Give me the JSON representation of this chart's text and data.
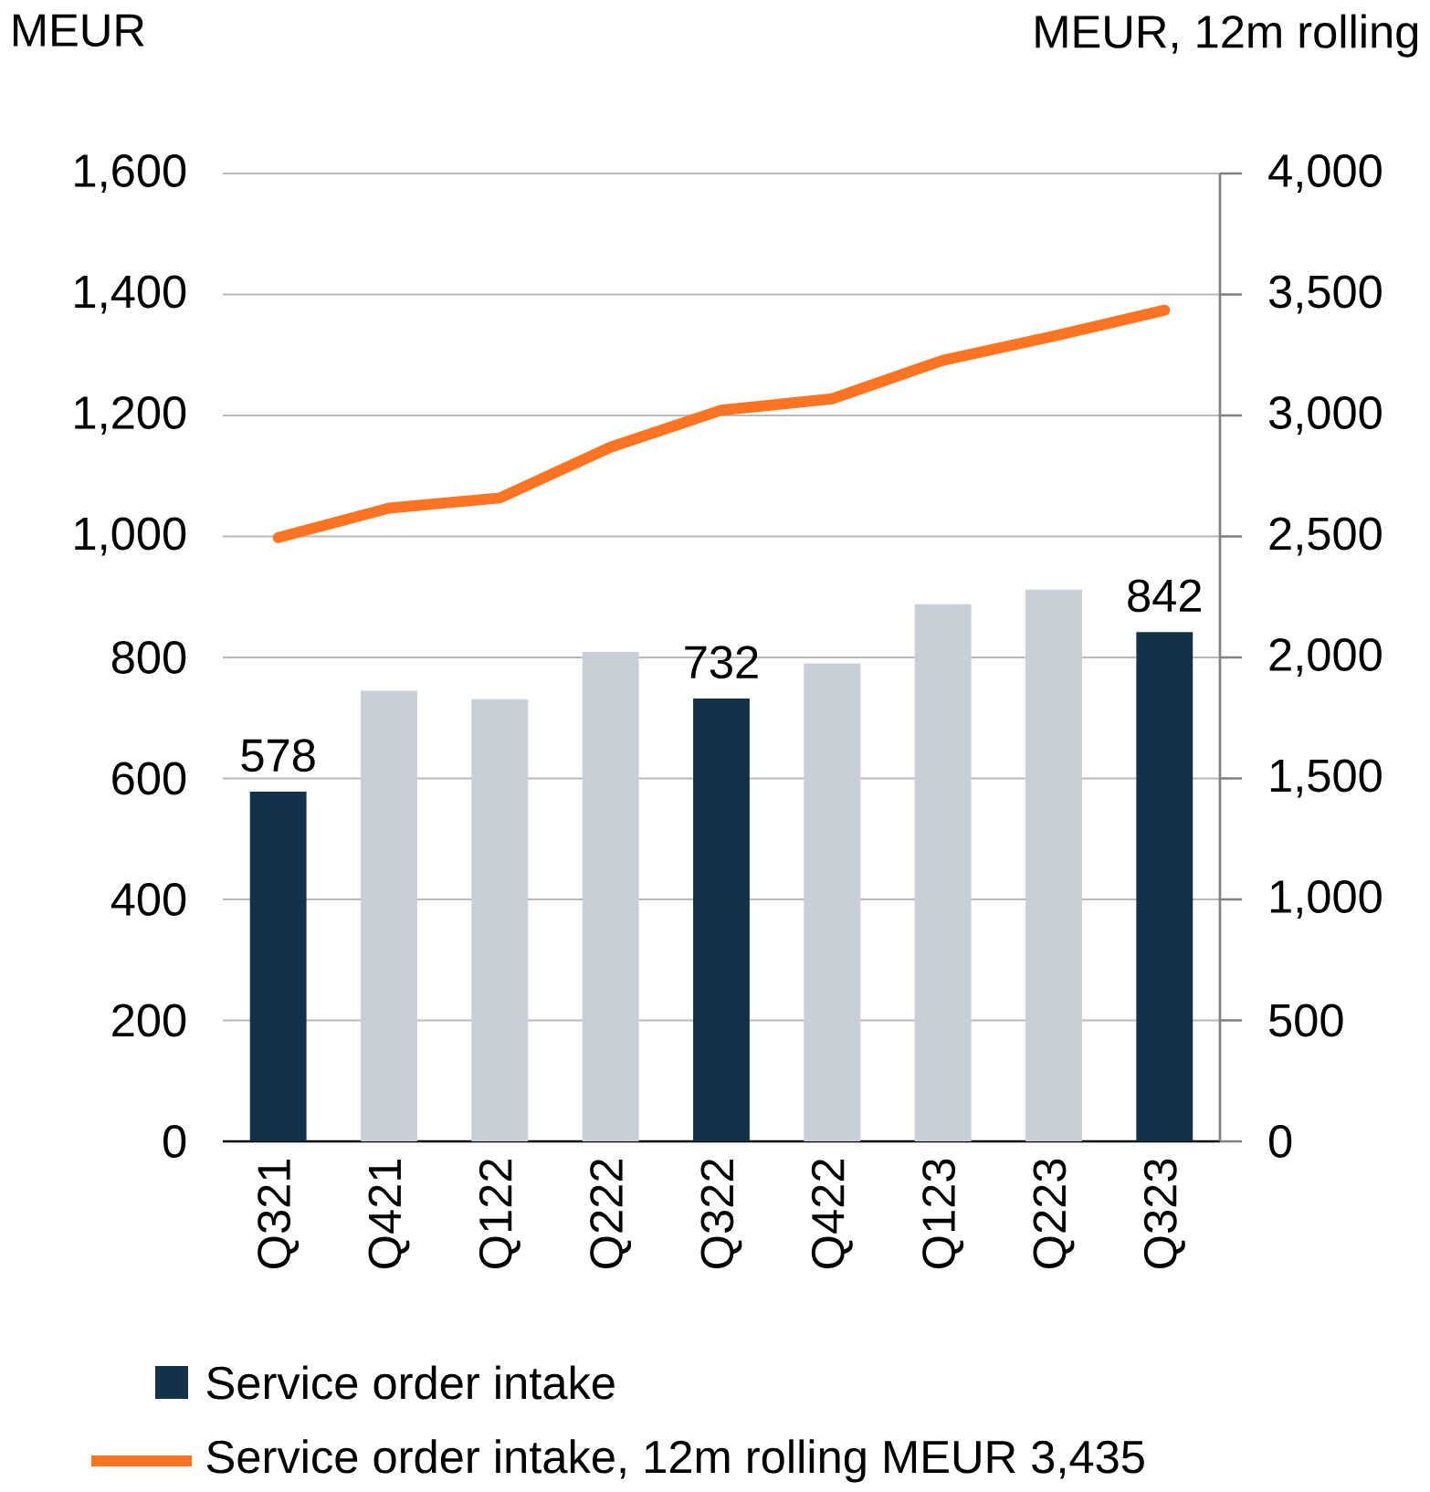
{
  "chart_data": {
    "type": "bar",
    "ylabel": "MEUR",
    "y2label": "MEUR, 12m rolling",
    "categories": [
      "Q321",
      "Q421",
      "Q122",
      "Q222",
      "Q322",
      "Q422",
      "Q123",
      "Q223",
      "Q323"
    ],
    "series": [
      {
        "name": "Service order intake",
        "color": "#12324a",
        "colors": [
          "#12324a",
          "#c8cfd6",
          "#c8cfd6",
          "#c8cfd6",
          "#12324a",
          "#c8cfd6",
          "#c8cfd6",
          "#c8cfd6",
          "#12324a"
        ],
        "values": [
          578,
          745,
          731,
          809,
          732,
          790,
          888,
          912,
          842
        ],
        "value_labels": [
          "578",
          null,
          null,
          null,
          "732",
          null,
          null,
          null,
          "842"
        ]
      },
      {
        "name": "Service order intake, 12m rolling MEUR 3,435",
        "type": "line",
        "axis": "y2",
        "color": "#ff7422",
        "values": [
          2495,
          2617,
          2659,
          2869,
          3022,
          3069,
          3228,
          3328,
          3435
        ]
      }
    ],
    "ylim": [
      0,
      1600
    ],
    "yticks": [
      0,
      200,
      400,
      600,
      800,
      {
        "value": 1000,
        "label": "1,000"
      },
      {
        "value": 1200,
        "label": "1,200"
      },
      {
        "value": 1400,
        "label": "1,400"
      },
      {
        "value": 1600,
        "label": "1,600"
      }
    ],
    "y2lim": [
      0,
      4000
    ],
    "y2ticks": [
      0,
      500,
      {
        "value": 1000,
        "label": "1,000"
      },
      {
        "value": 1500,
        "label": "1,500"
      },
      {
        "value": 2000,
        "label": "2,000"
      },
      {
        "value": 2500,
        "label": "2,500"
      },
      {
        "value": 3000,
        "label": "3,000"
      },
      {
        "value": 3500,
        "label": "3,500"
      },
      {
        "value": 4000,
        "label": "4,000"
      }
    ],
    "grid": "y",
    "legend": "bottom",
    "marker": "none",
    "line_style": "solid"
  }
}
